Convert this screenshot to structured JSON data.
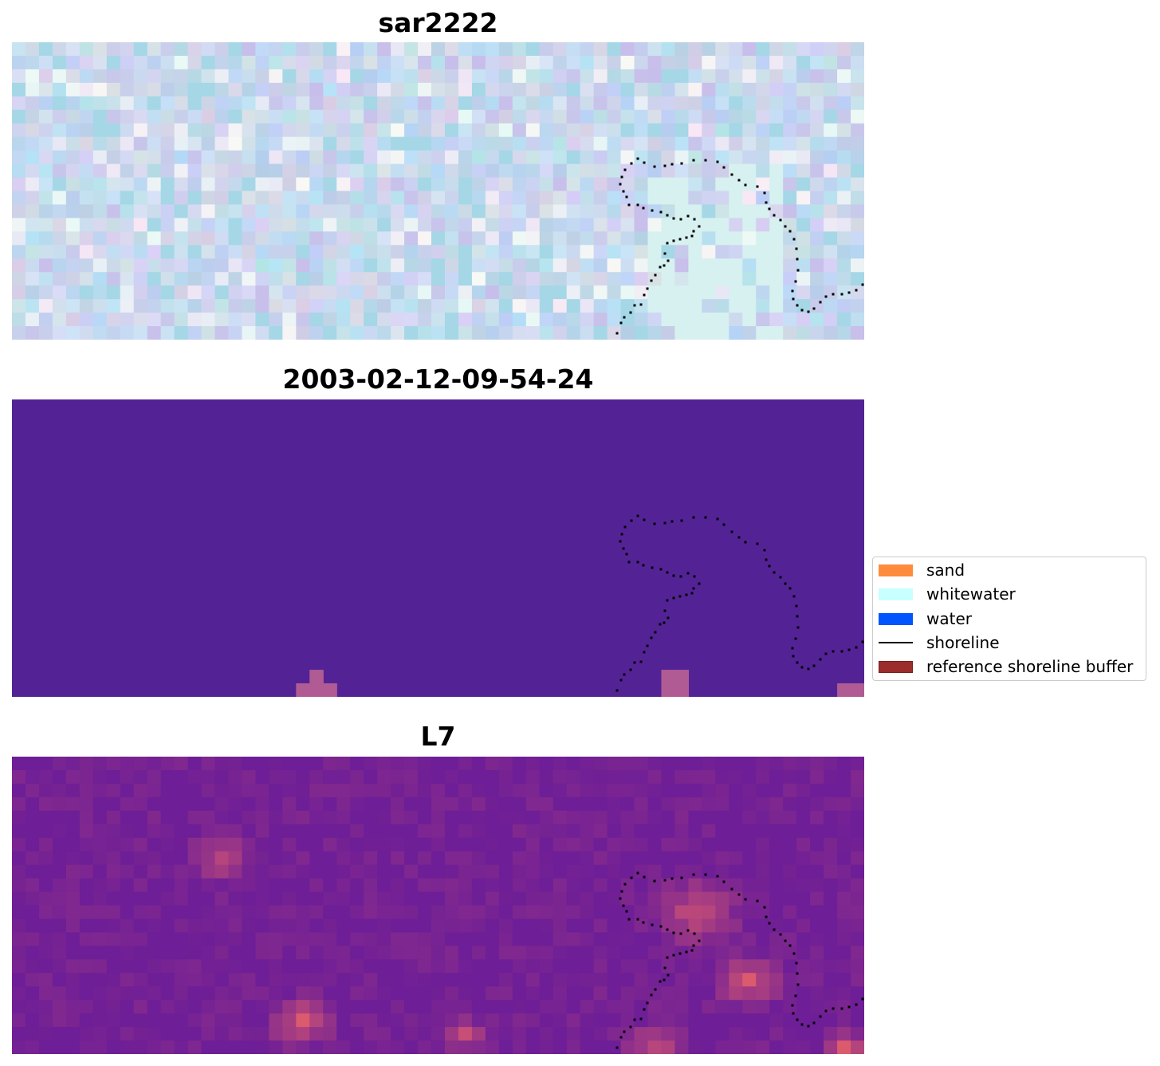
{
  "panels": [
    {
      "title": "sar2222",
      "style": "rgb"
    },
    {
      "title": "2003-02-12-09-54-24",
      "style": "class"
    },
    {
      "title": "L7",
      "style": "index"
    }
  ],
  "legend": {
    "items": [
      {
        "label": "sand",
        "color": "#ff8c3c",
        "kind": "patch"
      },
      {
        "label": "whitewater",
        "color": "#c8ffff",
        "kind": "patch"
      },
      {
        "label": "water",
        "color": "#0055ff",
        "kind": "patch"
      },
      {
        "label": "shoreline",
        "color": "#000000",
        "kind": "line"
      },
      {
        "label": "reference shoreline buffer",
        "color": "#9b2d2d",
        "kind": "patch"
      }
    ]
  },
  "colors": {
    "class_background": "#532396",
    "buffer_pixel": "#b05b93",
    "shoreline": "#000000"
  }
}
